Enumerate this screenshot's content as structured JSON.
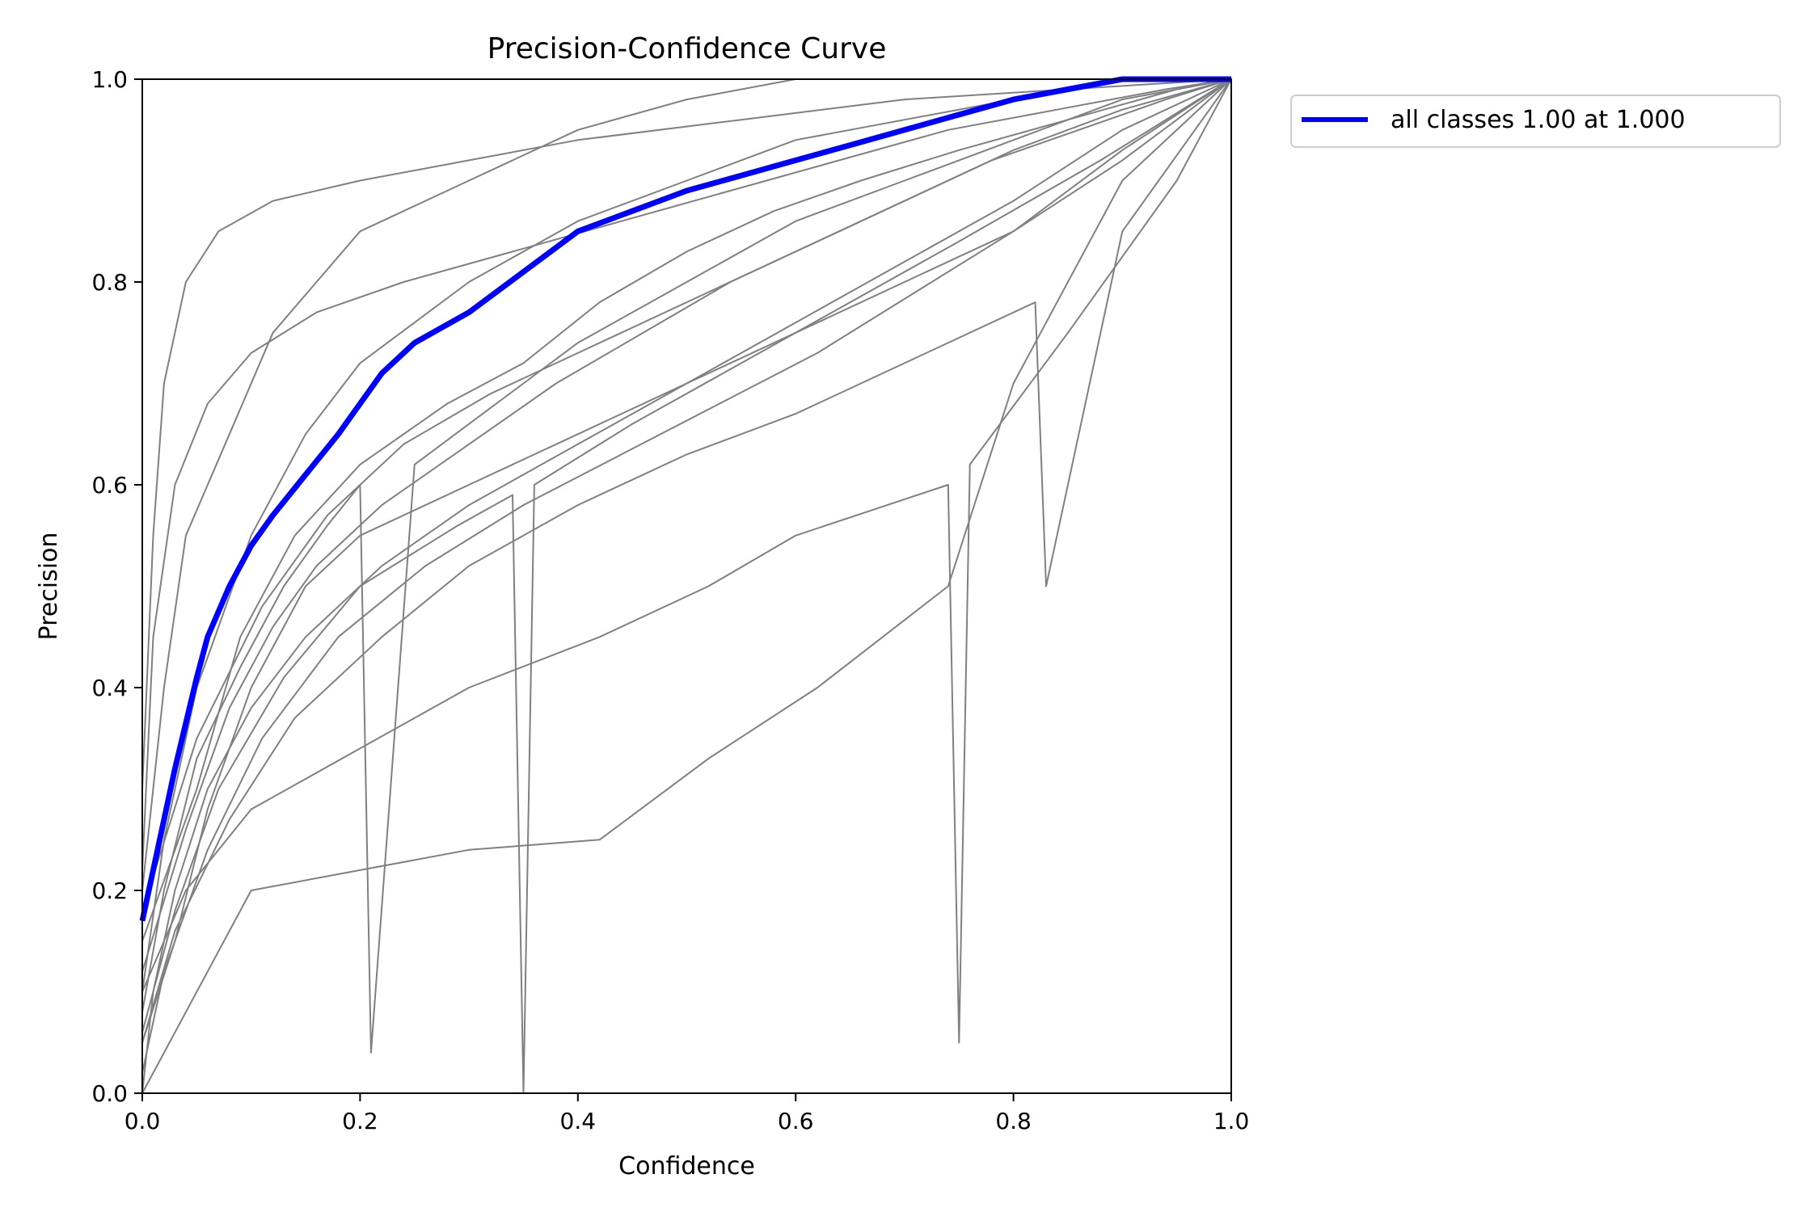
{
  "chart_data": {
    "type": "line",
    "title": "Precision-Confidence Curve",
    "xlabel": "Confidence",
    "ylabel": "Precision",
    "xlim": [
      0.0,
      1.0
    ],
    "ylim": [
      0.0,
      1.0
    ],
    "xticks": [
      "0.0",
      "0.2",
      "0.4",
      "0.6",
      "0.8",
      "1.0"
    ],
    "yticks": [
      "0.0",
      "0.2",
      "0.4",
      "0.6",
      "0.8",
      "1.0"
    ],
    "grid": false,
    "legend_position": "outside upper-right",
    "colors": {
      "classes": "#808080",
      "all_classes": "#0000ff"
    },
    "series": [
      {
        "name": "all classes 1.00 at 1.000",
        "x": [
          0.0,
          0.01,
          0.03,
          0.05,
          0.06,
          0.08,
          0.1,
          0.12,
          0.15,
          0.18,
          0.2,
          0.22,
          0.25,
          0.3,
          0.35,
          0.4,
          0.45,
          0.5,
          0.55,
          0.6,
          0.65,
          0.7,
          0.75,
          0.8,
          0.85,
          0.9,
          0.95,
          1.0
        ],
        "y": [
          0.17,
          0.22,
          0.32,
          0.41,
          0.45,
          0.5,
          0.54,
          0.57,
          0.61,
          0.65,
          0.68,
          0.71,
          0.74,
          0.77,
          0.81,
          0.85,
          0.87,
          0.89,
          0.905,
          0.92,
          0.935,
          0.95,
          0.965,
          0.98,
          0.99,
          1.0,
          1.0,
          1.0
        ]
      },
      {
        "x": [
          0.0,
          0.02,
          0.05,
          0.1,
          0.15,
          0.2,
          0.3,
          0.4,
          0.5,
          0.6,
          0.7,
          0.8,
          0.9,
          1.0
        ],
        "y": [
          0.1,
          0.25,
          0.4,
          0.55,
          0.65,
          0.72,
          0.8,
          0.86,
          0.9,
          0.94,
          0.96,
          0.98,
          1.0,
          1.0
        ]
      },
      {
        "x": [
          0.0,
          0.03,
          0.06,
          0.1,
          0.15,
          0.2,
          0.3,
          0.4,
          0.5,
          0.6,
          0.7,
          0.8,
          0.9,
          1.0
        ],
        "y": [
          0.05,
          0.15,
          0.28,
          0.4,
          0.5,
          0.55,
          0.6,
          0.65,
          0.7,
          0.75,
          0.8,
          0.85,
          0.92,
          1.0
        ]
      },
      {
        "x": [
          0.0,
          0.02,
          0.04,
          0.08,
          0.12,
          0.2,
          0.3,
          0.4,
          0.5,
          0.6,
          0.75,
          0.9,
          1.0
        ],
        "y": [
          0.2,
          0.4,
          0.55,
          0.65,
          0.75,
          0.85,
          0.9,
          0.95,
          0.98,
          1.0,
          1.0,
          1.0,
          1.0
        ]
      },
      {
        "x": [
          0.0,
          0.01,
          0.03,
          0.06,
          0.1,
          0.15,
          0.22,
          0.3,
          0.4,
          0.5,
          0.6,
          0.7,
          0.8,
          0.9,
          1.0
        ],
        "y": [
          0.0,
          0.1,
          0.2,
          0.3,
          0.38,
          0.45,
          0.52,
          0.58,
          0.64,
          0.7,
          0.76,
          0.82,
          0.88,
          0.95,
          1.0
        ]
      },
      {
        "x": [
          0.0,
          0.05,
          0.09,
          0.14,
          0.2,
          0.28,
          0.35,
          0.42,
          0.5,
          0.58,
          0.66,
          0.75,
          0.85,
          0.95,
          1.0
        ],
        "y": [
          0.15,
          0.3,
          0.45,
          0.55,
          0.62,
          0.68,
          0.72,
          0.78,
          0.83,
          0.87,
          0.9,
          0.93,
          0.96,
          0.99,
          1.0
        ]
      },
      {
        "x": [
          0.0,
          0.02,
          0.05,
          0.09,
          0.13,
          0.17,
          0.2,
          0.21,
          0.25,
          0.3,
          0.35,
          0.4,
          0.5,
          0.6,
          0.7,
          0.8,
          0.9,
          1.0
        ],
        "y": [
          0.08,
          0.2,
          0.33,
          0.42,
          0.5,
          0.56,
          0.6,
          0.04,
          0.62,
          0.66,
          0.7,
          0.74,
          0.8,
          0.86,
          0.9,
          0.94,
          0.98,
          1.0
        ]
      },
      {
        "x": [
          0.0,
          0.04,
          0.08,
          0.12,
          0.16,
          0.22,
          0.3,
          0.38,
          0.46,
          0.54,
          0.62,
          0.7,
          0.78,
          0.86,
          0.94,
          1.0
        ],
        "y": [
          0.12,
          0.26,
          0.38,
          0.46,
          0.52,
          0.58,
          0.64,
          0.7,
          0.75,
          0.8,
          0.84,
          0.88,
          0.92,
          0.95,
          0.98,
          1.0
        ]
      },
      {
        "x": [
          0.0,
          0.01,
          0.02,
          0.04,
          0.07,
          0.12,
          0.2,
          0.3,
          0.4,
          0.55,
          0.7,
          0.85,
          1.0
        ],
        "y": [
          0.3,
          0.55,
          0.7,
          0.8,
          0.85,
          0.88,
          0.9,
          0.92,
          0.94,
          0.96,
          0.98,
          0.99,
          1.0
        ]
      },
      {
        "x": [
          0.0,
          0.03,
          0.07,
          0.13,
          0.2,
          0.29,
          0.34,
          0.35,
          0.36,
          0.45,
          0.55,
          0.65,
          0.75,
          0.88,
          1.0
        ],
        "y": [
          0.06,
          0.18,
          0.3,
          0.41,
          0.5,
          0.56,
          0.59,
          0.0,
          0.6,
          0.66,
          0.72,
          0.78,
          0.84,
          0.92,
          1.0
        ]
      },
      {
        "x": [
          0.0,
          0.05,
          0.11,
          0.17,
          0.24,
          0.32,
          0.4,
          0.48,
          0.56,
          0.64,
          0.72,
          0.8,
          0.9,
          1.0
        ],
        "y": [
          0.18,
          0.35,
          0.48,
          0.57,
          0.64,
          0.69,
          0.73,
          0.77,
          0.81,
          0.85,
          0.89,
          0.93,
          0.97,
          1.0
        ]
      },
      {
        "x": [
          0.0,
          0.02,
          0.06,
          0.11,
          0.18,
          0.26,
          0.35,
          0.44,
          0.53,
          0.62,
          0.71,
          0.8,
          0.9,
          1.0
        ],
        "y": [
          0.02,
          0.12,
          0.24,
          0.35,
          0.45,
          0.52,
          0.58,
          0.63,
          0.68,
          0.73,
          0.79,
          0.85,
          0.93,
          1.0
        ]
      },
      {
        "x": [
          0.0,
          0.04,
          0.1,
          0.2,
          0.3,
          0.42,
          0.52,
          0.6,
          0.74,
          0.75,
          0.76,
          0.85,
          0.95,
          1.0
        ],
        "y": [
          0.1,
          0.2,
          0.28,
          0.34,
          0.4,
          0.45,
          0.5,
          0.55,
          0.6,
          0.05,
          0.62,
          0.75,
          0.9,
          1.0
        ]
      },
      {
        "x": [
          0.0,
          0.1,
          0.2,
          0.3,
          0.42,
          0.52,
          0.62,
          0.74,
          0.8,
          0.9,
          1.0
        ],
        "y": [
          0.0,
          0.2,
          0.22,
          0.24,
          0.25,
          0.33,
          0.4,
          0.5,
          0.7,
          0.9,
          1.0
        ]
      },
      {
        "x": [
          0.0,
          0.01,
          0.03,
          0.06,
          0.1,
          0.16,
          0.24,
          0.34,
          0.44,
          0.54,
          0.64,
          0.74,
          0.84,
          0.94,
          1.0
        ],
        "y": [
          0.22,
          0.45,
          0.6,
          0.68,
          0.73,
          0.77,
          0.8,
          0.83,
          0.86,
          0.89,
          0.92,
          0.95,
          0.97,
          0.99,
          1.0
        ]
      },
      {
        "x": [
          0.0,
          0.03,
          0.08,
          0.14,
          0.22,
          0.3,
          0.4,
          0.5,
          0.6,
          0.7,
          0.82,
          0.83,
          0.9,
          1.0
        ],
        "y": [
          0.05,
          0.16,
          0.27,
          0.37,
          0.45,
          0.52,
          0.58,
          0.63,
          0.67,
          0.72,
          0.78,
          0.5,
          0.85,
          1.0
        ]
      }
    ]
  }
}
